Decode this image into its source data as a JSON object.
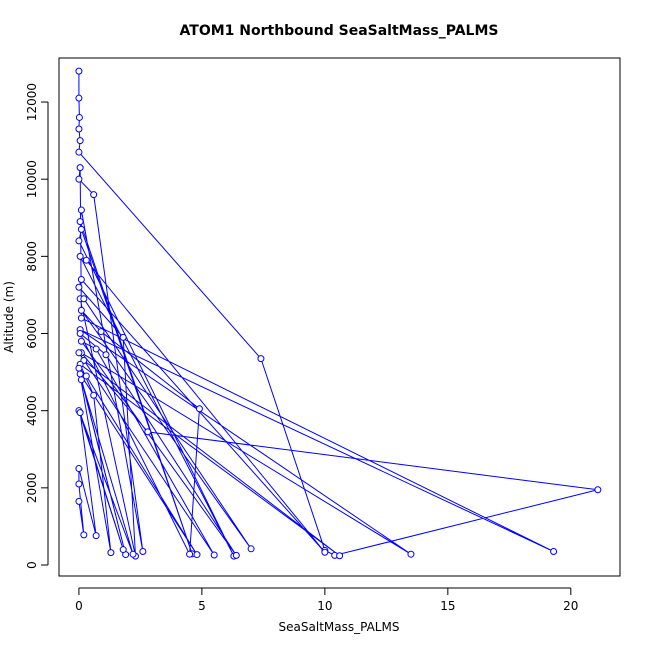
{
  "chart_data": {
    "type": "line",
    "title": "ATOM1 Northbound SeaSaltMass_PALMS",
    "x_label": "SeaSaltMass_PALMS",
    "y_label": "Altitude (m)",
    "color": "#0000ff",
    "markers": "open-circle",
    "x": [
      0,
      0,
      0.02,
      0,
      0.05,
      0,
      7.4,
      10.0,
      10.4,
      21.1,
      2.8,
      0.1,
      13.5,
      0.05,
      19.3,
      0.1,
      0.05,
      0,
      0.6,
      2.6,
      0.1,
      0.05,
      4.6,
      0.1,
      0,
      6.3,
      0.05,
      0.3,
      10.0,
      0.1,
      0,
      1.8,
      2.3,
      0.05,
      0.2,
      7.0,
      0.1,
      0.9,
      4.9,
      4.5,
      0.05,
      1.1,
      6.4,
      0.1,
      0.7,
      5.5,
      0,
      0.2,
      10.6,
      0.05,
      0.6,
      1.3,
      0,
      0.3,
      4.8,
      0.05,
      1.9,
      0.1,
      2.2,
      0,
      1.8,
      0.05,
      0.7,
      0,
      0,
      0.2,
      0
    ],
    "values": [
      12800,
      12100,
      11600,
      11300,
      11000,
      10700,
      5350,
      380,
      250,
      1950,
      3450,
      5500,
      280,
      6100,
      350,
      6400,
      10300,
      10000,
      9600,
      350,
      9200,
      8900,
      290,
      8700,
      8400,
      230,
      8000,
      7900,
      330,
      7400,
      7200,
      5900,
      230,
      6900,
      6900,
      420,
      6600,
      6050,
      4050,
      280,
      6000,
      5450,
      250,
      5800,
      5600,
      260,
      5500,
      5300,
      240,
      5200,
      4400,
      320,
      5100,
      4900,
      270,
      4950,
      270,
      4800,
      280,
      4000,
      400,
      3950,
      760,
      2500,
      2100,
      780,
      1650
    ],
    "xlim": [
      -0.81,
      22.0
    ],
    "ylim": [
      -285,
      13141
    ],
    "xticks": [
      0,
      5,
      10,
      15,
      20
    ],
    "yticks": [
      0,
      2000,
      4000,
      6000,
      8000,
      10000,
      12000
    ]
  }
}
